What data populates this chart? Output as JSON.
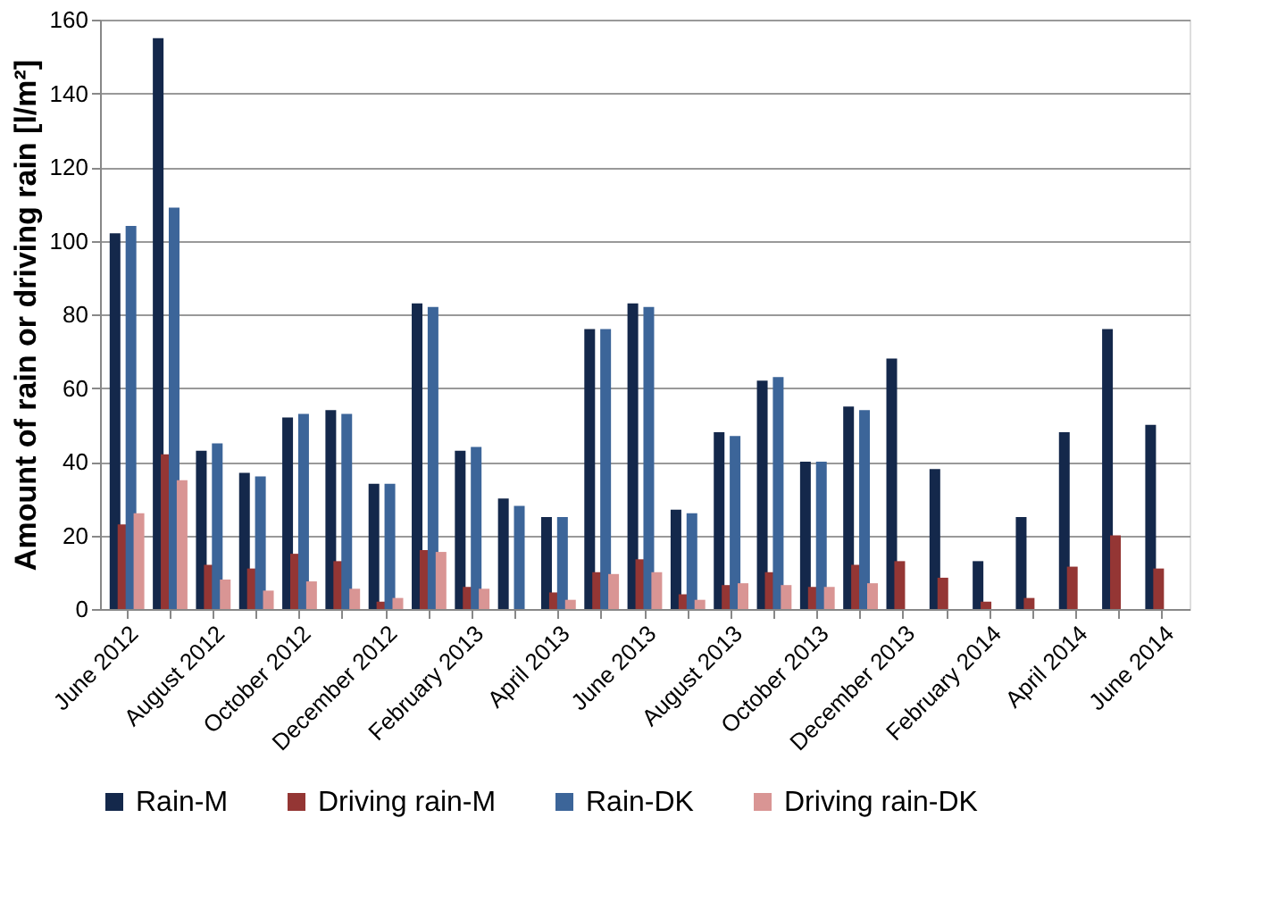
{
  "chart_data": {
    "type": "bar",
    "ylabel": "Amount of rain or driving rain [l/m²]",
    "categories": [
      "June 2012",
      null,
      "August 2012",
      null,
      "October 2012",
      null,
      "December 2012",
      null,
      "February 2013",
      null,
      "April 2013",
      null,
      "June 2013",
      null,
      "August 2013",
      null,
      "October 2013",
      null,
      "December 2013",
      null,
      "February 2014",
      null,
      "April 2014",
      null,
      "June 2014"
    ],
    "series": [
      {
        "name": "Rain-M",
        "color": "#14284b",
        "values": [
          102,
          155,
          43,
          37,
          52,
          54,
          34,
          83,
          43,
          30,
          25,
          76,
          83,
          27,
          48,
          62,
          40,
          55,
          68,
          38,
          13,
          25,
          48,
          76,
          50
        ]
      },
      {
        "name": "Driving rain-M",
        "color": "#943634",
        "values": [
          23,
          42,
          12,
          11,
          15,
          13,
          2,
          16,
          6,
          null,
          4.5,
          10,
          13.5,
          4,
          6.5,
          10,
          6,
          12,
          13,
          8.5,
          2,
          3,
          11.5,
          20,
          11
        ]
      },
      {
        "name": "Rain-DK",
        "color": "#3c6599",
        "values": [
          104,
          109,
          45,
          36,
          53,
          53,
          34,
          82,
          44,
          28,
          25,
          76,
          82,
          26,
          47,
          63,
          40,
          54,
          null,
          null,
          null,
          null,
          null,
          null,
          null
        ]
      },
      {
        "name": "Driving rain-DK",
        "color": "#d99594",
        "values": [
          26,
          35,
          8,
          5,
          7.5,
          5.5,
          3,
          15.5,
          5.5,
          null,
          2.5,
          9.5,
          10,
          2.5,
          7,
          6.5,
          6,
          7,
          null,
          null,
          null,
          null,
          null,
          null,
          null
        ]
      }
    ],
    "ylim": [
      0,
      160
    ],
    "yticks": [
      0,
      20,
      40,
      60,
      80,
      100,
      120,
      140,
      160
    ],
    "grid": "y",
    "legend": "bottom"
  }
}
